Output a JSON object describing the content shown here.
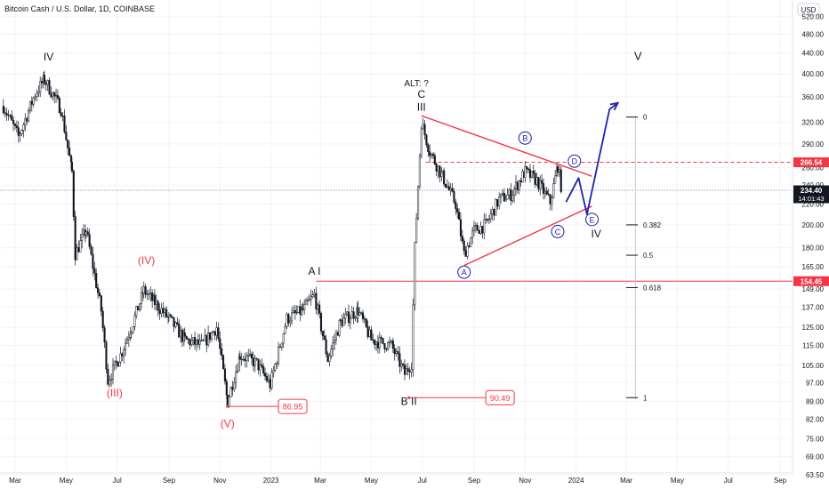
{
  "header": {
    "title": "Bitcoin Cash / U.S. Dollar, 1D, COINBASE"
  },
  "chart_data": {
    "type": "candlestick",
    "title": "Bitcoin Cash / U.S. Dollar, 1D, COINBASE",
    "yscale": "log",
    "ylim": [
      60,
      550
    ],
    "currency_label": "USD",
    "y_ticks": [
      "520.00",
      "480.00",
      "440.00",
      "400.00",
      "360.00",
      "320.00",
      "290.00",
      "260.00",
      "240.00",
      "220.00",
      "200.00",
      "180.00",
      "165.00",
      "149.00",
      "137.00",
      "125.00",
      "115.00",
      "105.00",
      "97.00",
      "89.00",
      "82.00",
      "75.00",
      "69.00",
      "63.50"
    ],
    "x_ticks": [
      "Mar",
      "May",
      "Jul",
      "Sep",
      "Nov",
      "2023",
      "Mar",
      "May",
      "Jul",
      "Sep",
      "Nov",
      "2024",
      "Mar",
      "May",
      "Jul",
      "Sep"
    ],
    "price_series": [
      {
        "t": "2022-02-15",
        "v": 345
      },
      {
        "t": "2022-03-05",
        "v": 300
      },
      {
        "t": "2022-03-25",
        "v": 365
      },
      {
        "t": "2022-04-05",
        "v": 390
      },
      {
        "t": "2022-04-25",
        "v": 340
      },
      {
        "t": "2022-05-08",
        "v": 255
      },
      {
        "t": "2022-05-12",
        "v": 175
      },
      {
        "t": "2022-05-25",
        "v": 195
      },
      {
        "t": "2022-06-12",
        "v": 135
      },
      {
        "t": "2022-06-20",
        "v": 98
      },
      {
        "t": "2022-07-05",
        "v": 110
      },
      {
        "t": "2022-07-18",
        "v": 125
      },
      {
        "t": "2022-08-02",
        "v": 148
      },
      {
        "t": "2022-08-15",
        "v": 140
      },
      {
        "t": "2022-09-01",
        "v": 130
      },
      {
        "t": "2022-09-20",
        "v": 118
      },
      {
        "t": "2022-10-10",
        "v": 115
      },
      {
        "t": "2022-10-28",
        "v": 125
      },
      {
        "t": "2022-11-10",
        "v": 89
      },
      {
        "t": "2022-11-25",
        "v": 110
      },
      {
        "t": "2022-12-15",
        "v": 106
      },
      {
        "t": "2022-12-31",
        "v": 96
      },
      {
        "t": "2023-01-20",
        "v": 130
      },
      {
        "t": "2023-02-08",
        "v": 135
      },
      {
        "t": "2023-02-22",
        "v": 145
      },
      {
        "t": "2023-03-10",
        "v": 108
      },
      {
        "t": "2023-03-25",
        "v": 128
      },
      {
        "t": "2023-04-15",
        "v": 135
      },
      {
        "t": "2023-05-01",
        "v": 118
      },
      {
        "t": "2023-05-25",
        "v": 115
      },
      {
        "t": "2023-06-10",
        "v": 101
      },
      {
        "t": "2023-06-18",
        "v": 106
      },
      {
        "t": "2023-06-22",
        "v": 180
      },
      {
        "t": "2023-06-30",
        "v": 320
      },
      {
        "t": "2023-07-10",
        "v": 280
      },
      {
        "t": "2023-07-25",
        "v": 250
      },
      {
        "t": "2023-08-10",
        "v": 220
      },
      {
        "t": "2023-08-20",
        "v": 175
      },
      {
        "t": "2023-09-01",
        "v": 195
      },
      {
        "t": "2023-09-15",
        "v": 200
      },
      {
        "t": "2023-10-01",
        "v": 225
      },
      {
        "t": "2023-10-15",
        "v": 230
      },
      {
        "t": "2023-11-01",
        "v": 255
      },
      {
        "t": "2023-11-15",
        "v": 245
      },
      {
        "t": "2023-12-01",
        "v": 222
      },
      {
        "t": "2023-12-10",
        "v": 262
      },
      {
        "t": "2023-12-15",
        "v": 234
      }
    ],
    "price_labels": [
      {
        "value": 266.54,
        "text": "266.54",
        "color": "#f23645"
      },
      {
        "value": 234.4,
        "text": "234.40",
        "text2": "14:01:43",
        "color": "#131722"
      },
      {
        "value": 154.45,
        "text": "154.45",
        "color": "#f23645"
      }
    ],
    "horizontal_lines": [
      {
        "value": 266.54,
        "style": "dashed",
        "color": "#f23645",
        "from": "2023-07-05"
      },
      {
        "value": 234.4,
        "style": "dotted",
        "color": "#787b86",
        "from": "2022-02-01"
      },
      {
        "value": 154.45,
        "style": "solid",
        "color": "#f23645",
        "from": "2023-02-24"
      }
    ],
    "level_boxes": [
      {
        "value": 86.95,
        "text": "86.95",
        "from": "2022-11-10",
        "to": "2023-01-10"
      },
      {
        "value": 90.49,
        "text": "90.49",
        "from": "2023-06-15",
        "to": "2023-09-15"
      }
    ],
    "triangle_lines": [
      {
        "from": {
          "t": "2023-06-30",
          "v": 330
        },
        "to": {
          "t": "2024-01-20",
          "v": 250
        }
      },
      {
        "from": {
          "t": "2023-08-20",
          "v": 166
        },
        "to": {
          "t": "2024-01-20",
          "v": 218
        }
      }
    ],
    "projection": [
      {
        "t": "2023-12-20",
        "v": 222
      },
      {
        "t": "2024-01-04",
        "v": 248
      },
      {
        "t": "2024-01-14",
        "v": 210
      },
      {
        "t": "2024-02-10",
        "v": 340
      },
      {
        "t": "2024-02-20",
        "v": 350
      }
    ],
    "fib": {
      "line": {
        "from": {
          "t": "2024-03-12",
          "v": 90
        },
        "to": {
          "t": "2024-03-12",
          "v": 330
        }
      },
      "levels": [
        {
          "label": "0",
          "value": 328,
          "t": "2024-03-01"
        },
        {
          "label": "0.382",
          "value": 200,
          "t": "2024-03-01"
        },
        {
          "label": "0.5",
          "value": 174,
          "t": "2024-03-01"
        },
        {
          "label": "0.618",
          "value": 150,
          "t": "2024-03-01"
        },
        {
          "label": "1",
          "value": 90.5,
          "t": "2024-03-01"
        }
      ]
    },
    "annotations": [
      {
        "text": "IV",
        "t": "2022-04-10",
        "v": 425,
        "color": "#131722",
        "size": 12
      },
      {
        "text": "(IV)",
        "t": "2022-08-05",
        "v": 167,
        "color": "#f23645",
        "size": 12
      },
      {
        "text": "(III)",
        "t": "2022-06-28",
        "v": 91,
        "color": "#f23645",
        "size": 12
      },
      {
        "text": "(V)",
        "t": "2022-11-10",
        "v": 79,
        "color": "#f23645",
        "size": 12
      },
      {
        "text": "A I",
        "t": "2023-02-22",
        "v": 159,
        "color": "#131722",
        "size": 12
      },
      {
        "text": "B II",
        "t": "2023-06-15",
        "v": 87.5,
        "color": "#131722",
        "size": 12
      },
      {
        "text": "ALT: ?",
        "t": "2023-06-24",
        "v": 378,
        "color": "#131722",
        "size": 10
      },
      {
        "text": "C",
        "t": "2023-06-30",
        "v": 358,
        "color": "#131722",
        "size": 12
      },
      {
        "text": "III",
        "t": "2023-06-30",
        "v": 338,
        "color": "#131722",
        "size": 12
      },
      {
        "text": "IV",
        "t": "2024-01-25",
        "v": 189,
        "color": "#131722",
        "size": 12
      },
      {
        "text": "V",
        "t": "2024-03-15",
        "v": 426,
        "color": "#131722",
        "size": 13
      }
    ],
    "circle_labels": [
      {
        "text": "A",
        "t": "2023-08-20",
        "v": 161
      },
      {
        "text": "B",
        "t": "2023-11-01",
        "v": 298
      },
      {
        "text": "C",
        "t": "2023-12-10",
        "v": 194
      },
      {
        "text": "D",
        "t": "2023-12-30",
        "v": 268
      },
      {
        "text": "E",
        "t": "2024-01-20",
        "v": 205
      }
    ],
    "colors": {
      "candle": "#131722",
      "red": "#f23645",
      "blue": "#1e22aa",
      "axis_text": "#131722",
      "grid": "#f0f3fa",
      "fib_line": "#c8cbd2",
      "fib_text": "#131722"
    }
  }
}
